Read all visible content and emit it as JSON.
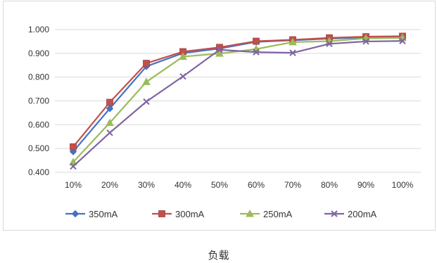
{
  "chart_data": {
    "type": "line",
    "categories": [
      "10%",
      "20%",
      "30%",
      "40%",
      "50%",
      "60%",
      "70%",
      "80%",
      "90%",
      "100%"
    ],
    "y_ticks": [
      "0.400",
      "0.500",
      "0.600",
      "0.700",
      "0.800",
      "0.900",
      "1.000"
    ],
    "ylim": [
      0.4,
      1.0
    ],
    "grid": "horizontal",
    "legend_position": "bottom",
    "xlabel": "负载",
    "series": [
      {
        "name": "350mA",
        "color": "#4472C4",
        "marker": "diamond",
        "values": [
          0.487,
          0.668,
          0.845,
          0.901,
          0.92,
          0.948,
          0.955,
          0.962,
          0.967,
          0.968
        ]
      },
      {
        "name": "300mA",
        "color": "#C0504D",
        "marker": "square",
        "values": [
          0.507,
          0.694,
          0.858,
          0.907,
          0.925,
          0.951,
          0.957,
          0.965,
          0.97,
          0.972
        ]
      },
      {
        "name": "250mA",
        "color": "#9BBB59",
        "marker": "triangle",
        "values": [
          0.443,
          0.608,
          0.78,
          0.886,
          0.899,
          0.918,
          0.947,
          0.951,
          0.963,
          0.965
        ]
      },
      {
        "name": "200mA",
        "color": "#8064A2",
        "marker": "x",
        "values": [
          0.425,
          0.566,
          0.697,
          0.803,
          0.915,
          0.905,
          0.902,
          0.94,
          0.95,
          0.952
        ]
      }
    ]
  }
}
